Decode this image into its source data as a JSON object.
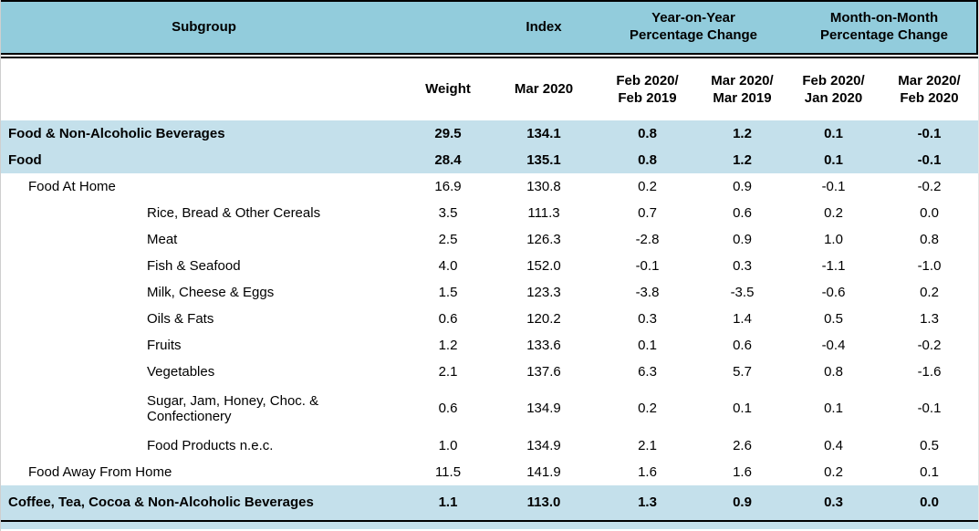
{
  "colors": {
    "header_bg": "#92CCDC",
    "highlight_bg": "#C4E0EB",
    "text": "#000000",
    "border": "#000000"
  },
  "header": {
    "subgroup": "Subgroup",
    "index": "Index",
    "yoy": "Year-on-Year\nPercentage Change",
    "mom": "Month-on-Month\nPercentage Change"
  },
  "subheader": {
    "weight": "Weight",
    "index_period": "Mar 2020",
    "yoy_periods": [
      "Feb 2020/\nFeb 2019",
      "Mar 2020/\nMar 2019"
    ],
    "mom_periods": [
      "Feb 2020/\nJan 2020",
      "Mar 2020/\nFeb 2020"
    ]
  },
  "rows": [
    {
      "label": "Food & Non-Alcoholic Beverages",
      "level": 0,
      "highlight": true,
      "tall": false,
      "values": [
        "29.5",
        "134.1",
        "0.8",
        "1.2",
        "0.1",
        "-0.1"
      ]
    },
    {
      "label": "Food",
      "level": 0,
      "highlight": true,
      "tall": false,
      "values": [
        "28.4",
        "135.1",
        "0.8",
        "1.2",
        "0.1",
        "-0.1"
      ]
    },
    {
      "label": "Food At Home",
      "level": 1,
      "highlight": false,
      "tall": false,
      "values": [
        "16.9",
        "130.8",
        "0.2",
        "0.9",
        "-0.1",
        "-0.2"
      ]
    },
    {
      "label": "Rice, Bread & Other Cereals",
      "level": 2,
      "highlight": false,
      "tall": false,
      "values": [
        "3.5",
        "111.3",
        "0.7",
        "0.6",
        "0.2",
        "0.0"
      ]
    },
    {
      "label": "Meat",
      "level": 2,
      "highlight": false,
      "tall": false,
      "values": [
        "2.5",
        "126.3",
        "-2.8",
        "0.9",
        "1.0",
        "0.8"
      ]
    },
    {
      "label": "Fish & Seafood",
      "level": 2,
      "highlight": false,
      "tall": false,
      "values": [
        "4.0",
        "152.0",
        "-0.1",
        "0.3",
        "-1.1",
        "-1.0"
      ]
    },
    {
      "label": "Milk, Cheese & Eggs",
      "level": 2,
      "highlight": false,
      "tall": false,
      "values": [
        "1.5",
        "123.3",
        "-3.8",
        "-3.5",
        "-0.6",
        "0.2"
      ]
    },
    {
      "label": "Oils & Fats",
      "level": 2,
      "highlight": false,
      "tall": false,
      "values": [
        "0.6",
        "120.2",
        "0.3",
        "1.4",
        "0.5",
        "1.3"
      ]
    },
    {
      "label": "Fruits",
      "level": 2,
      "highlight": false,
      "tall": false,
      "values": [
        "1.2",
        "133.6",
        "0.1",
        "0.6",
        "-0.4",
        "-0.2"
      ]
    },
    {
      "label": "Vegetables",
      "level": 2,
      "highlight": false,
      "tall": false,
      "values": [
        "2.1",
        "137.6",
        "6.3",
        "5.7",
        "0.8",
        "-1.6"
      ]
    },
    {
      "label": "Sugar, Jam, Honey, Choc. & Confectionery",
      "level": 2,
      "highlight": false,
      "tall": true,
      "values": [
        "0.6",
        "134.9",
        "0.2",
        "0.1",
        "0.1",
        "-0.1"
      ]
    },
    {
      "label": "Food Products n.e.c.",
      "level": 2,
      "highlight": false,
      "tall": false,
      "values": [
        "1.0",
        "134.9",
        "2.1",
        "2.6",
        "0.4",
        "0.5"
      ]
    },
    {
      "label": "Food Away From Home",
      "level": 1,
      "highlight": false,
      "tall": false,
      "values": [
        "11.5",
        "141.9",
        "1.6",
        "1.6",
        "0.2",
        "0.1"
      ]
    },
    {
      "label": "Coffee, Tea, Cocoa & Non-Alcoholic Beverages",
      "level": 0,
      "highlight": true,
      "tall": false,
      "last": true,
      "values": [
        "1.1",
        "113.0",
        "1.3",
        "0.9",
        "0.3",
        "0.0"
      ]
    }
  ]
}
